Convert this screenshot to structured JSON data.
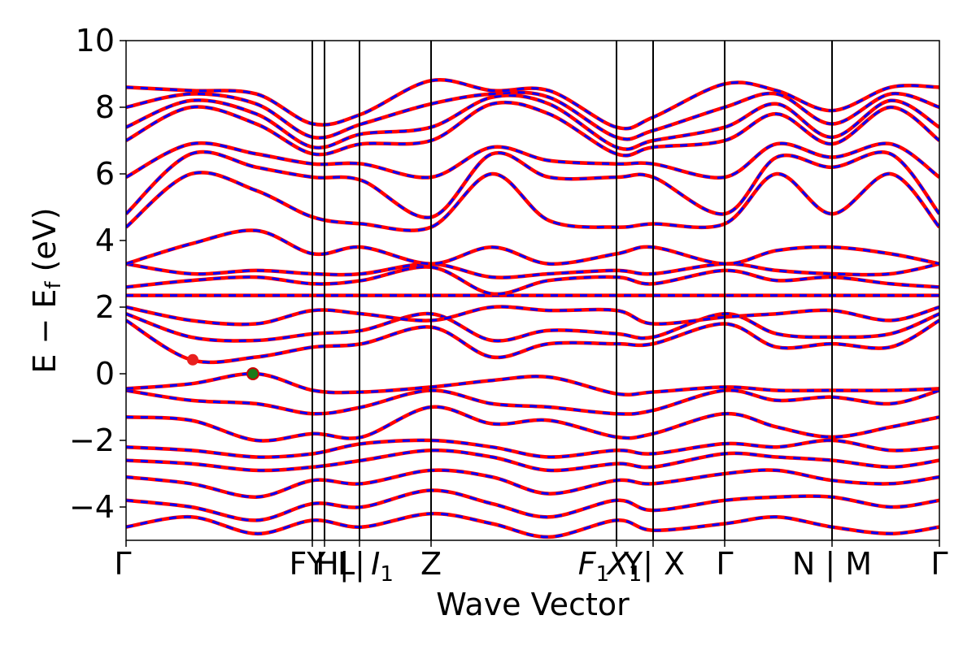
{
  "chart_data": {
    "type": "line",
    "title": "",
    "xlabel": "Wave Vector",
    "ylabel": "E − E",
    "ylabel_sub": "f",
    "ylabel_unit": " (eV)",
    "ylim": [
      -5,
      10
    ],
    "y_ticks": [
      {
        "value": 10,
        "label": "10"
      },
      {
        "value": 8,
        "label": "8"
      },
      {
        "value": 6,
        "label": "6"
      },
      {
        "value": 4,
        "label": "4"
      },
      {
        "value": 2,
        "label": "2"
      },
      {
        "value": 0,
        "label": "0"
      },
      {
        "value": -2,
        "label": "−2"
      },
      {
        "value": -4,
        "label": "−4"
      }
    ],
    "xlim": [
      0,
      1
    ],
    "k_labels": [
      {
        "x": 0.0,
        "label": "Γ"
      },
      {
        "x": 0.229,
        "label": "FY"
      },
      {
        "x": 0.244,
        "label": "H|"
      },
      {
        "x": 0.287,
        "label": "L|"
      },
      {
        "x": 0.287,
        "label": "I",
        "sub": "1"
      },
      {
        "x": 0.375,
        "label": "Z"
      },
      {
        "x": 0.603,
        "label": "F",
        "sub": "1"
      },
      {
        "x": 0.603,
        "label": "X",
        "sub": "1"
      },
      {
        "x": 0.648,
        "label": "Y|"
      },
      {
        "x": 0.648,
        "label": "X"
      },
      {
        "x": 0.736,
        "label": "Γ"
      },
      {
        "x": 0.868,
        "label": "N | M"
      },
      {
        "x": 1.0,
        "label": "Γ"
      }
    ],
    "vertical_lines_x": [
      0.229,
      0.244,
      0.287,
      0.375,
      0.603,
      0.648,
      0.736,
      0.868
    ],
    "grid": false,
    "series": [
      {
        "style": "solid",
        "color": "#ff0000"
      },
      {
        "style": "dashed",
        "color": "#0000ff"
      }
    ],
    "markers": [
      {
        "x": 0.082,
        "y": 0.42,
        "color": "#e8201e"
      },
      {
        "x": 0.156,
        "y": 0.0,
        "color": "#1a7a1a"
      }
    ],
    "bands": [
      {
        "x": [
          0.0,
          0.08,
          0.16,
          0.23,
          0.29,
          0.375,
          0.45,
          0.52,
          0.603,
          0.648,
          0.736,
          0.8,
          0.868,
          0.94,
          1.0
        ],
        "y": [
          -4.6,
          -4.3,
          -4.8,
          -4.4,
          -4.6,
          -4.2,
          -4.5,
          -4.9,
          -4.4,
          -4.7,
          -4.5,
          -4.3,
          -4.6,
          -4.8,
          -4.6
        ]
      },
      {
        "x": [
          0.0,
          0.08,
          0.16,
          0.23,
          0.29,
          0.375,
          0.45,
          0.52,
          0.603,
          0.648,
          0.736,
          0.8,
          0.868,
          0.94,
          1.0
        ],
        "y": [
          -3.8,
          -4.0,
          -4.4,
          -3.9,
          -4.0,
          -3.5,
          -3.9,
          -4.3,
          -3.8,
          -4.1,
          -3.8,
          -3.7,
          -3.7,
          -4.0,
          -3.8
        ]
      },
      {
        "x": [
          0.0,
          0.08,
          0.16,
          0.23,
          0.29,
          0.375,
          0.45,
          0.52,
          0.603,
          0.648,
          0.736,
          0.8,
          0.868,
          0.94,
          1.0
        ],
        "y": [
          -3.1,
          -3.3,
          -3.7,
          -3.2,
          -3.3,
          -2.9,
          -3.1,
          -3.6,
          -3.2,
          -3.3,
          -3.0,
          -2.9,
          -3.2,
          -3.3,
          -3.1
        ]
      },
      {
        "x": [
          0.0,
          0.08,
          0.16,
          0.23,
          0.29,
          0.375,
          0.45,
          0.52,
          0.603,
          0.648,
          0.736,
          0.8,
          0.868,
          0.94,
          1.0
        ],
        "y": [
          -2.6,
          -2.7,
          -2.9,
          -2.8,
          -2.6,
          -2.3,
          -2.5,
          -2.9,
          -2.7,
          -2.8,
          -2.4,
          -2.5,
          -2.6,
          -2.8,
          -2.6
        ]
      },
      {
        "x": [
          0.0,
          0.08,
          0.16,
          0.23,
          0.29,
          0.375,
          0.45,
          0.52,
          0.603,
          0.648,
          0.736,
          0.8,
          0.868,
          0.94,
          1.0
        ],
        "y": [
          -2.2,
          -2.3,
          -2.5,
          -2.4,
          -2.1,
          -2.0,
          -2.2,
          -2.5,
          -2.3,
          -2.4,
          -2.1,
          -2.2,
          -2.0,
          -2.3,
          -2.2
        ]
      },
      {
        "x": [
          0.0,
          0.08,
          0.16,
          0.23,
          0.29,
          0.375,
          0.45,
          0.52,
          0.603,
          0.648,
          0.736,
          0.8,
          0.868,
          0.94,
          1.0
        ],
        "y": [
          -1.3,
          -1.4,
          -2.0,
          -1.8,
          -1.9,
          -1.0,
          -1.5,
          -1.4,
          -1.9,
          -1.8,
          -1.2,
          -1.6,
          -1.9,
          -1.6,
          -1.3
        ]
      },
      {
        "x": [
          0.0,
          0.08,
          0.16,
          0.23,
          0.29,
          0.375,
          0.45,
          0.52,
          0.603,
          0.648,
          0.736,
          0.8,
          0.868,
          0.94,
          1.0
        ],
        "y": [
          -0.5,
          -0.8,
          -0.9,
          -1.2,
          -1.0,
          -0.5,
          -0.9,
          -1.0,
          -1.2,
          -1.1,
          -0.5,
          -0.8,
          -0.7,
          -0.9,
          -0.5
        ]
      },
      {
        "x": [
          0.0,
          0.08,
          0.16,
          0.23,
          0.29,
          0.375,
          0.45,
          0.52,
          0.603,
          0.648,
          0.736,
          0.8,
          0.868,
          0.94,
          1.0
        ],
        "y": [
          -0.45,
          -0.3,
          0.0,
          -0.5,
          -0.55,
          -0.4,
          -0.2,
          -0.1,
          -0.6,
          -0.55,
          -0.4,
          -0.5,
          -0.5,
          -0.5,
          -0.45
        ]
      },
      {
        "x": [
          0.0,
          0.08,
          0.16,
          0.23,
          0.29,
          0.375,
          0.45,
          0.52,
          0.603,
          0.648,
          0.736,
          0.8,
          0.868,
          0.94,
          1.0
        ],
        "y": [
          1.6,
          0.42,
          0.5,
          0.8,
          0.9,
          1.4,
          0.5,
          0.9,
          0.9,
          0.9,
          1.5,
          0.8,
          0.9,
          0.8,
          1.6
        ]
      },
      {
        "x": [
          0.0,
          0.08,
          0.16,
          0.23,
          0.29,
          0.375,
          0.45,
          0.52,
          0.603,
          0.648,
          0.736,
          0.8,
          0.868,
          0.94,
          1.0
        ],
        "y": [
          1.8,
          1.1,
          1.0,
          1.2,
          1.3,
          1.8,
          1.0,
          1.3,
          1.2,
          1.1,
          1.8,
          1.2,
          1.1,
          1.2,
          1.8
        ]
      },
      {
        "x": [
          0.0,
          0.08,
          0.16,
          0.23,
          0.29,
          0.375,
          0.45,
          0.52,
          0.603,
          0.648,
          0.736,
          0.8,
          0.868,
          0.94,
          1.0
        ],
        "y": [
          2.0,
          1.6,
          1.5,
          1.9,
          1.8,
          1.6,
          2.0,
          1.9,
          1.9,
          1.5,
          1.7,
          1.8,
          1.9,
          1.6,
          2.0
        ]
      },
      {
        "x": [
          0.0,
          0.08,
          0.16,
          0.23,
          0.29,
          0.375,
          0.45,
          0.52,
          0.603,
          0.648,
          0.736,
          0.8,
          0.868,
          0.94,
          1.0
        ],
        "y": [
          2.35,
          2.35,
          2.35,
          2.35,
          2.35,
          2.35,
          2.35,
          2.35,
          2.35,
          2.35,
          2.35,
          2.35,
          2.35,
          2.35,
          2.35
        ]
      },
      {
        "x": [
          0.0,
          0.08,
          0.16,
          0.23,
          0.29,
          0.375,
          0.45,
          0.52,
          0.603,
          0.648,
          0.736,
          0.8,
          0.868,
          0.94,
          1.0
        ],
        "y": [
          2.6,
          2.8,
          2.9,
          2.7,
          2.8,
          3.2,
          2.4,
          2.8,
          2.9,
          2.7,
          3.1,
          2.8,
          2.9,
          2.7,
          2.6
        ]
      },
      {
        "x": [
          0.0,
          0.08,
          0.16,
          0.23,
          0.29,
          0.375,
          0.45,
          0.52,
          0.603,
          0.648,
          0.736,
          0.8,
          0.868,
          0.94,
          1.0
        ],
        "y": [
          3.3,
          3.0,
          3.1,
          3.0,
          3.0,
          3.3,
          2.9,
          3.0,
          3.1,
          3.0,
          3.3,
          3.1,
          3.0,
          3.0,
          3.3
        ]
      },
      {
        "x": [
          0.0,
          0.08,
          0.16,
          0.23,
          0.29,
          0.375,
          0.45,
          0.52,
          0.603,
          0.648,
          0.736,
          0.8,
          0.868,
          0.94,
          1.0
        ],
        "y": [
          3.3,
          3.9,
          4.3,
          3.6,
          3.8,
          3.3,
          3.8,
          3.3,
          3.6,
          3.8,
          3.3,
          3.7,
          3.8,
          3.6,
          3.3
        ]
      },
      {
        "x": [
          0.0,
          0.08,
          0.16,
          0.23,
          0.29,
          0.375,
          0.45,
          0.52,
          0.603,
          0.648,
          0.736,
          0.8,
          0.868,
          0.94,
          1.0
        ],
        "y": [
          4.4,
          6.0,
          5.5,
          4.7,
          4.5,
          4.4,
          6.0,
          4.6,
          4.4,
          4.5,
          4.5,
          6.0,
          4.8,
          6.0,
          4.4
        ]
      },
      {
        "x": [
          0.0,
          0.08,
          0.16,
          0.23,
          0.29,
          0.375,
          0.45,
          0.52,
          0.603,
          0.648,
          0.736,
          0.8,
          0.868,
          0.94,
          1.0
        ],
        "y": [
          4.8,
          6.6,
          6.2,
          5.9,
          5.8,
          4.7,
          6.6,
          5.9,
          5.9,
          5.9,
          4.8,
          6.5,
          6.2,
          6.6,
          4.8
        ]
      },
      {
        "x": [
          0.0,
          0.08,
          0.16,
          0.23,
          0.29,
          0.375,
          0.45,
          0.52,
          0.603,
          0.648,
          0.736,
          0.8,
          0.868,
          0.94,
          1.0
        ],
        "y": [
          5.9,
          6.9,
          6.6,
          6.3,
          6.3,
          5.9,
          6.8,
          6.4,
          6.3,
          6.3,
          5.9,
          6.9,
          6.5,
          6.9,
          5.9
        ]
      },
      {
        "x": [
          0.0,
          0.08,
          0.16,
          0.23,
          0.29,
          0.375,
          0.45,
          0.52,
          0.603,
          0.648,
          0.736,
          0.8,
          0.868,
          0.94,
          1.0
        ],
        "y": [
          7.0,
          8.0,
          7.5,
          6.6,
          6.9,
          7.0,
          8.1,
          7.8,
          6.6,
          6.8,
          7.0,
          7.8,
          6.9,
          8.0,
          7.0
        ]
      },
      {
        "x": [
          0.0,
          0.08,
          0.16,
          0.23,
          0.29,
          0.375,
          0.45,
          0.52,
          0.603,
          0.648,
          0.736,
          0.8,
          0.868,
          0.94,
          1.0
        ],
        "y": [
          7.4,
          8.2,
          7.8,
          6.8,
          7.2,
          7.4,
          8.3,
          8.1,
          6.8,
          7.0,
          7.4,
          8.1,
          7.1,
          8.2,
          7.4
        ]
      },
      {
        "x": [
          0.0,
          0.08,
          0.16,
          0.23,
          0.29,
          0.375,
          0.45,
          0.52,
          0.603,
          0.648,
          0.736,
          0.8,
          0.868,
          0.94,
          1.0
        ],
        "y": [
          8.0,
          8.4,
          8.1,
          7.1,
          7.5,
          8.1,
          8.4,
          8.3,
          7.1,
          7.3,
          8.0,
          8.4,
          7.5,
          8.4,
          8.0
        ]
      },
      {
        "x": [
          0.0,
          0.08,
          0.16,
          0.23,
          0.29,
          0.375,
          0.45,
          0.52,
          0.603,
          0.648,
          0.736,
          0.8,
          0.868,
          0.94,
          1.0
        ],
        "y": [
          8.6,
          8.5,
          8.4,
          7.5,
          7.8,
          8.8,
          8.5,
          8.5,
          7.4,
          7.7,
          8.7,
          8.5,
          7.9,
          8.6,
          8.6
        ]
      }
    ]
  }
}
